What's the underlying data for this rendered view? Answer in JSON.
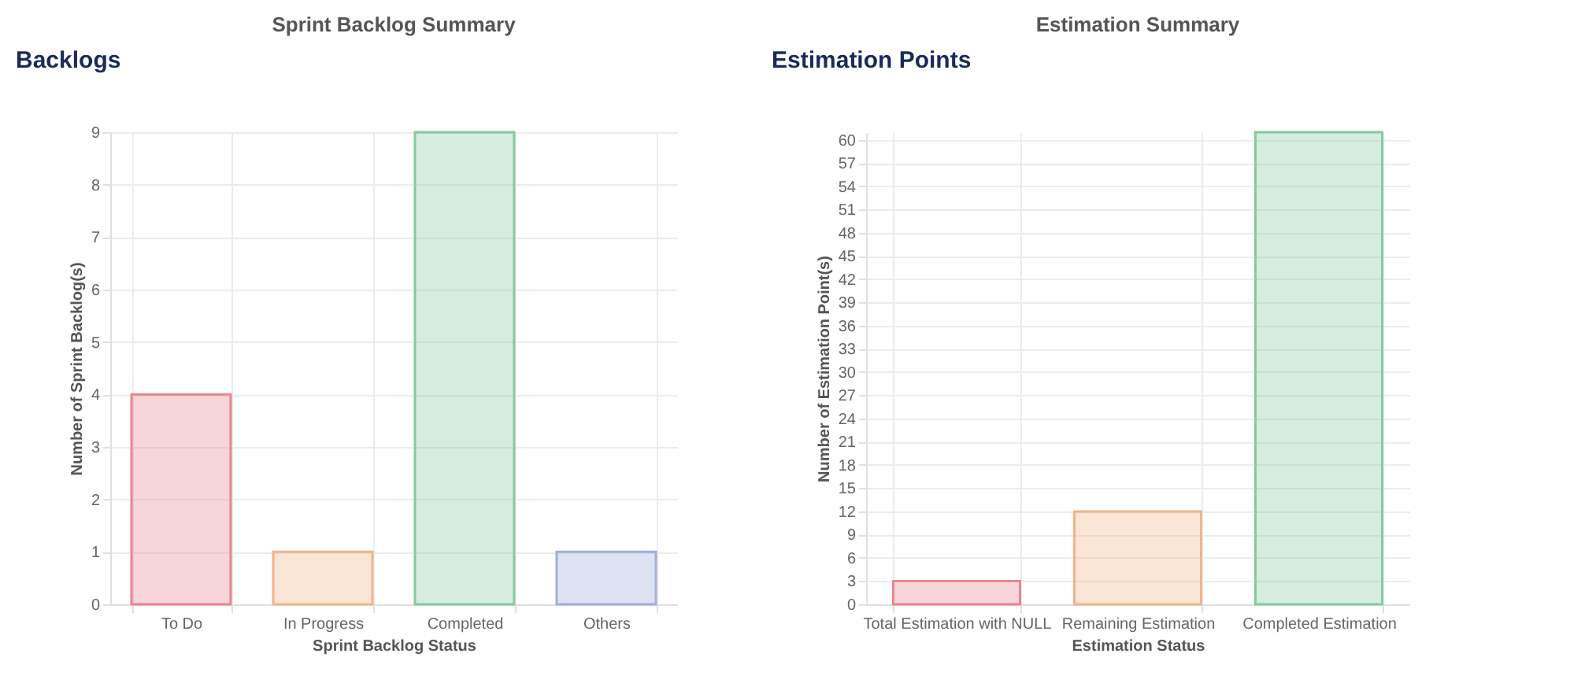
{
  "chart_data": [
    {
      "type": "bar",
      "annotations": [
        "Backlogs"
      ],
      "title": "Sprint Backlog Summary",
      "xlabel": "Sprint Backlog Status",
      "ylabel": "Number of Sprint Backlog(s)",
      "categories": [
        "To Do",
        "In Progress",
        "Completed",
        "Others"
      ],
      "values": [
        4,
        1,
        9,
        1
      ],
      "colors": [
        "#e8868f",
        "#f2b48a",
        "#86c9a0",
        "#9fb0d9"
      ],
      "ylim": [
        0,
        9
      ],
      "yticks": [
        0,
        1,
        2,
        3,
        4,
        5,
        6,
        7,
        8,
        9
      ],
      "grid": true
    },
    {
      "type": "bar",
      "annotations": [
        "Estimation Points"
      ],
      "title": "Estimation Summary",
      "xlabel": "Estimation Status",
      "ylabel": "Number of Estimation Point(s)",
      "categories": [
        "Total Estimation with NULL",
        "Remaining Estimation",
        "Completed Estimation"
      ],
      "values": [
        3,
        12,
        61
      ],
      "colors": [
        "#e8868f",
        "#f2b48a",
        "#86c9a0"
      ],
      "ylim": [
        0,
        61
      ],
      "yticks": [
        0,
        3,
        6,
        9,
        12,
        15,
        18,
        21,
        24,
        27,
        30,
        33,
        36,
        39,
        42,
        45,
        48,
        51,
        54,
        57,
        60
      ],
      "grid": true
    }
  ]
}
